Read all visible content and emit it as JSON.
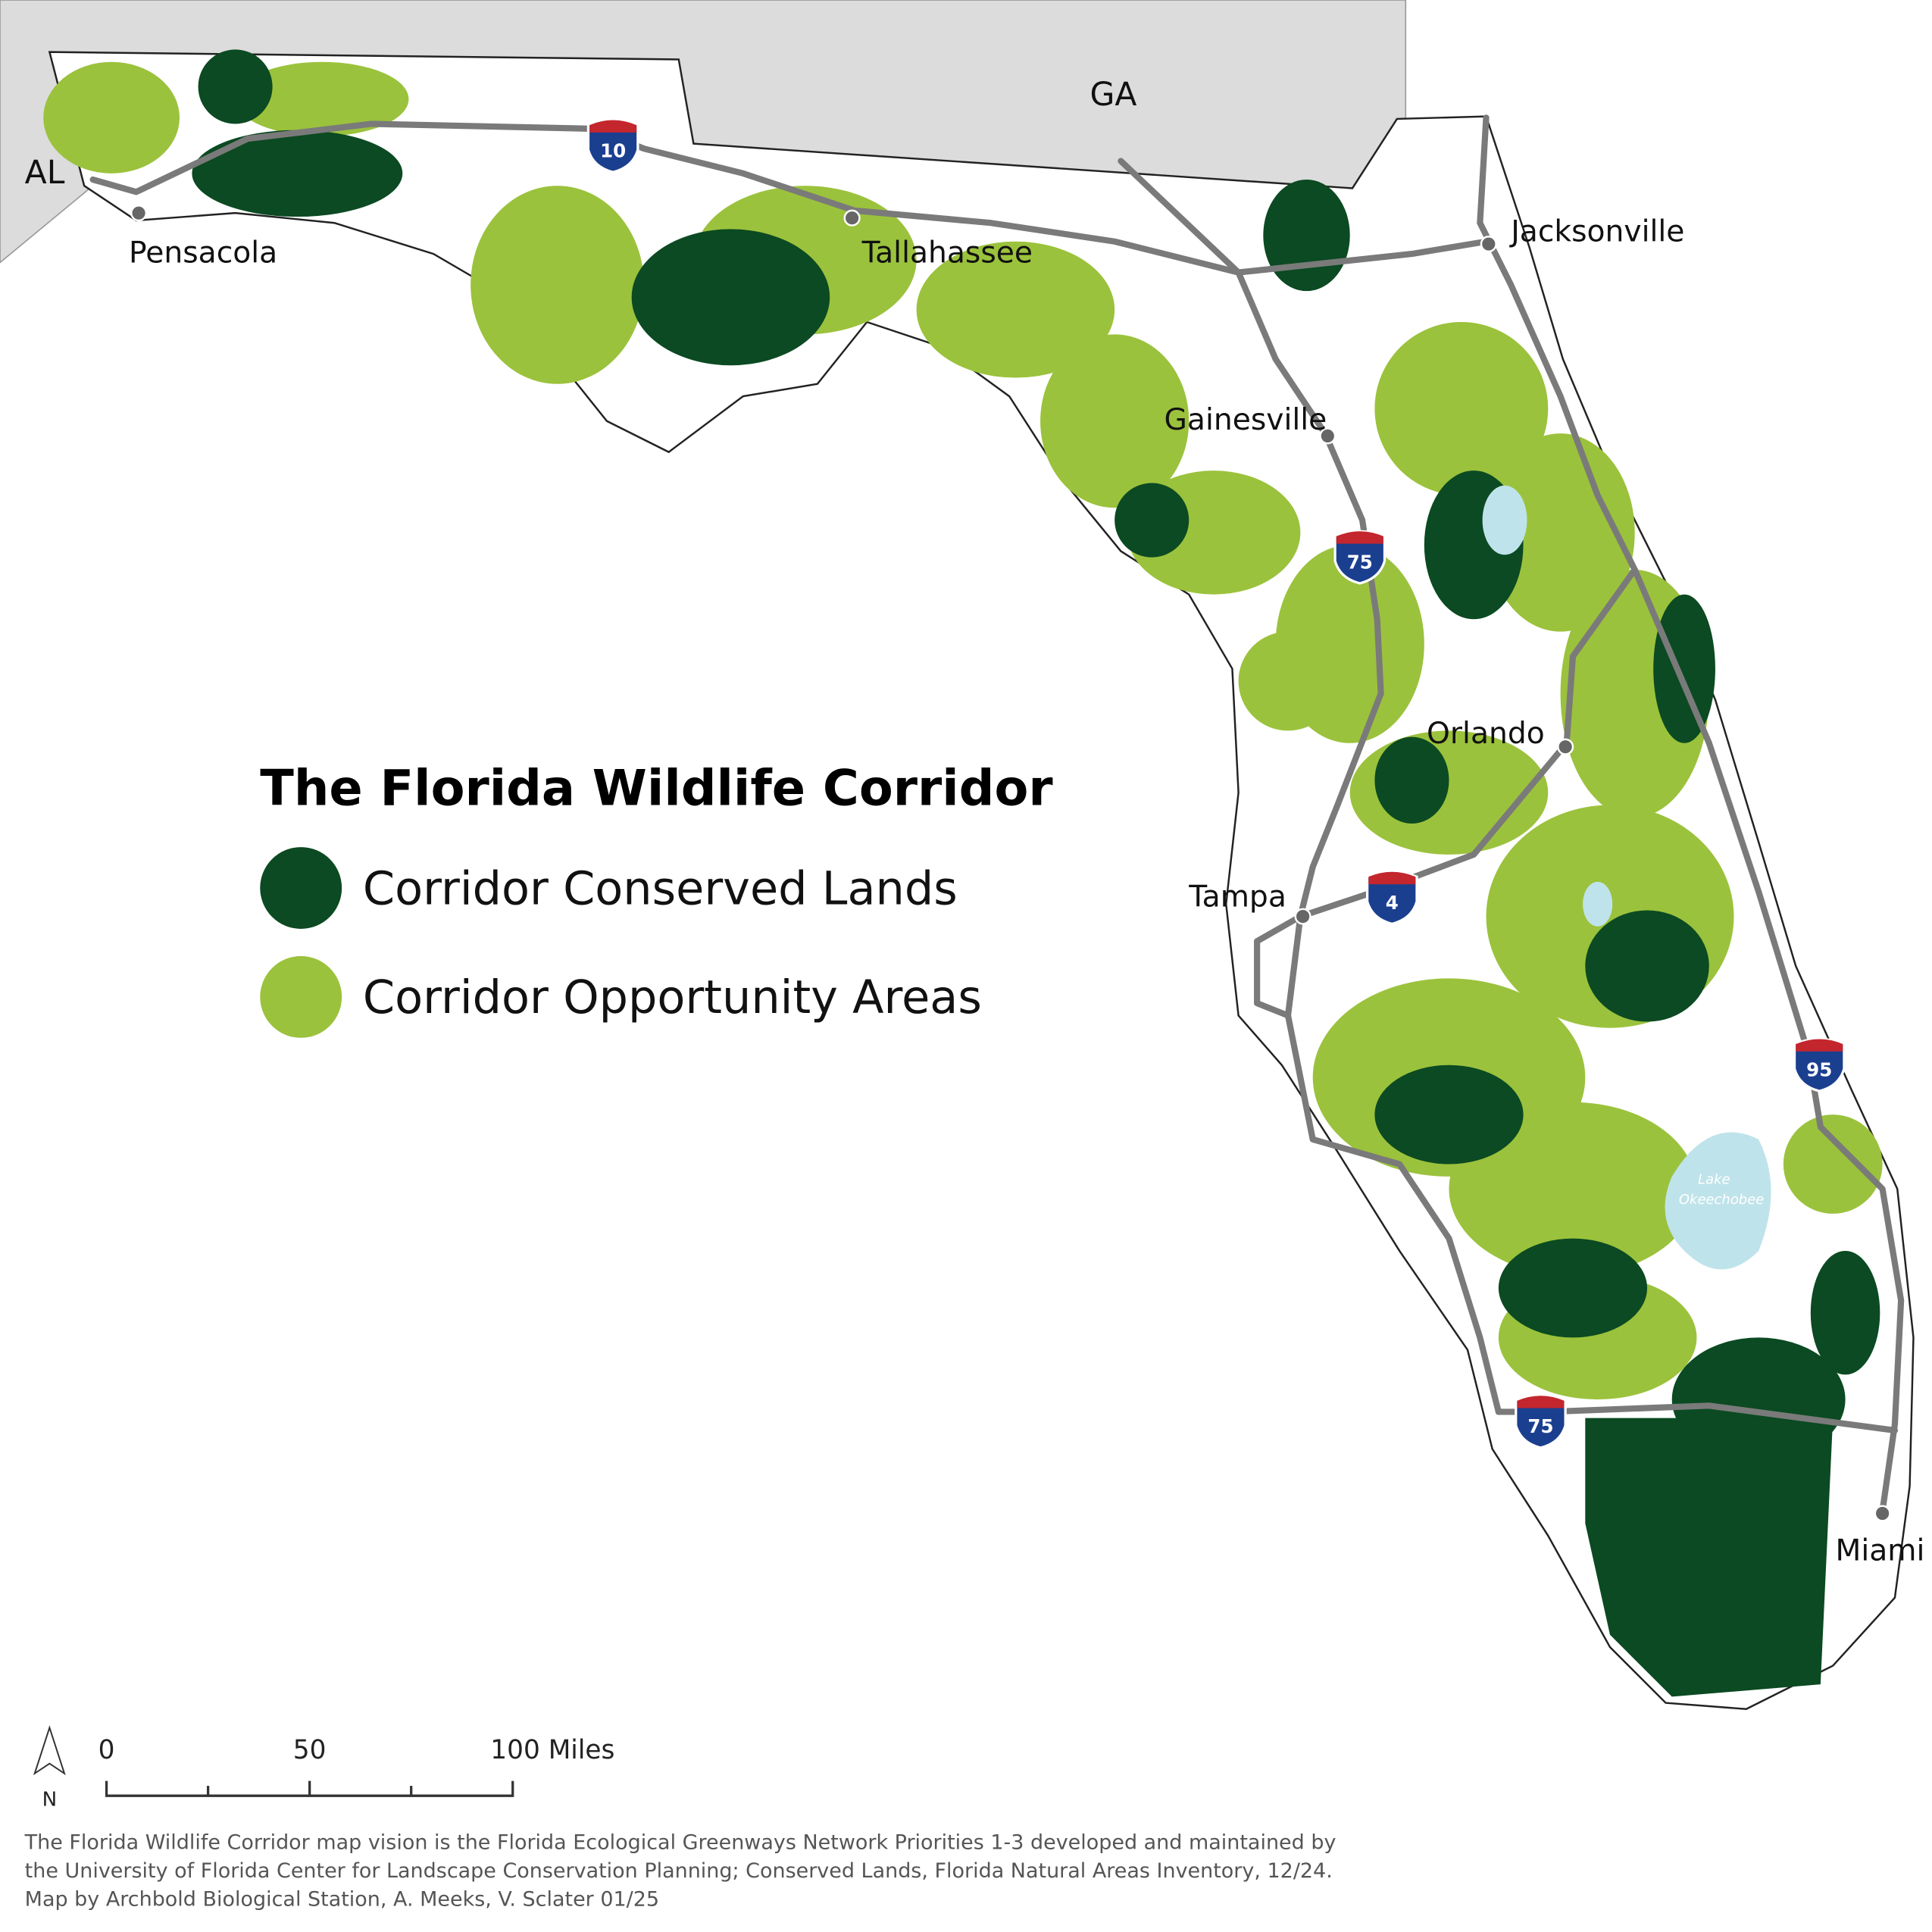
{
  "map": {
    "states": [
      "AL",
      "GA"
    ],
    "cities": [
      "Pensacola",
      "Tallahassee",
      "Jacksonville",
      "Gainesville",
      "Orlando",
      "Tampa",
      "Miami"
    ],
    "highways": [
      "10",
      "75",
      "4",
      "95",
      "75"
    ],
    "lake": [
      "Lake",
      "Okeechobee"
    ]
  },
  "legend": {
    "title": "The Florida Wildlife Corridor",
    "items": [
      {
        "label": "Corridor Conserved Lands",
        "color": "#0b4a22"
      },
      {
        "label": "Corridor Opportunity Areas",
        "color": "#9bc23c"
      }
    ]
  },
  "scale_bar": {
    "ticks": [
      "0",
      "50",
      "100 Miles"
    ],
    "north": "N"
  },
  "credits": [
    "The Florida Wildlife Corridor map vision is the Florida Ecological Greenways Network Priorities 1-3 developed and maintained by",
    "the University of Florida Center for Landscape Conservation Planning; Conserved Lands, Florida Natural Areas Inventory, 12/24.",
    "Map by Archbold Biological Station, A. Meeks, V. Sclater 01/25"
  ]
}
